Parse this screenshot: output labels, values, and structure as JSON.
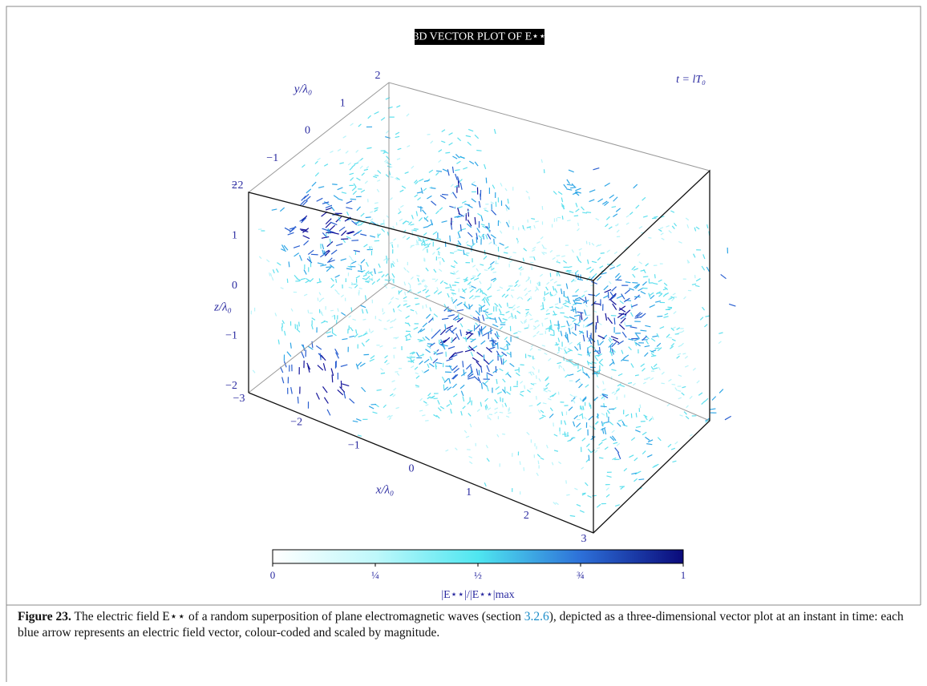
{
  "figure": {
    "title": "3D VECTOR PLOT OF E⋆⋆",
    "time_label": "t = lT₀",
    "axes": {
      "x": {
        "label": "x/λ₀",
        "ticks": [
          "−3",
          "−2",
          "−1",
          "0",
          "1",
          "2",
          "3"
        ]
      },
      "y": {
        "label": "y/λ₀",
        "ticks": [
          "−2",
          "−1",
          "0",
          "1",
          "2"
        ]
      },
      "z": {
        "label": "z/λ₀",
        "ticks": [
          "−2",
          "−1",
          "0",
          "1",
          "2"
        ]
      }
    },
    "colorbar": {
      "label": "|E⋆⋆|/|E⋆⋆|max",
      "ticks": [
        "0",
        "¼",
        "½",
        "¾",
        "1"
      ]
    }
  },
  "caption": {
    "label": "Figure 23.",
    "text_before": "The electric field E⋆⋆ of a random superposition of plane electromagnetic waves (section ",
    "link": "3.2.6",
    "text_after": "), depicted as a three-dimensional vector plot at an instant in time: each blue arrow represents an electric field vector, colour-coded and scaled by magnitude."
  }
}
